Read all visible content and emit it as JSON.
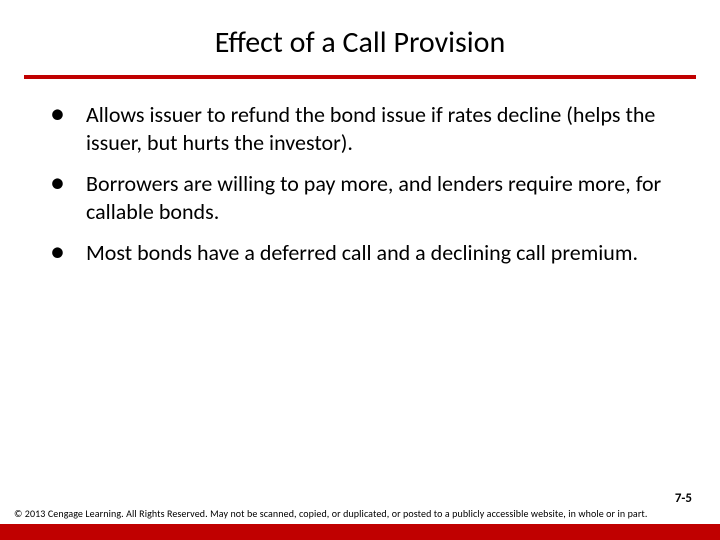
{
  "title": "Effect of a Call Provision",
  "rule_color": "#c00000",
  "bullets": [
    "Allows issuer to refund the bond issue if rates decline (helps the issuer, but hurts the investor).",
    "Borrowers are willing to pay more, and lenders require more, for callable bonds.",
    "Most bonds have a deferred call and a declining call premium."
  ],
  "page_number": "7-5",
  "copyright": "© 2013 Cengage Learning. All Rights Reserved. May not be scanned, copied, or duplicated, or posted to a publicly accessible website, in whole or in part.",
  "footer_bar_color": "#c00000",
  "text_fontsize": 22,
  "title_fontsize": 30,
  "background_color": "#ffffff"
}
